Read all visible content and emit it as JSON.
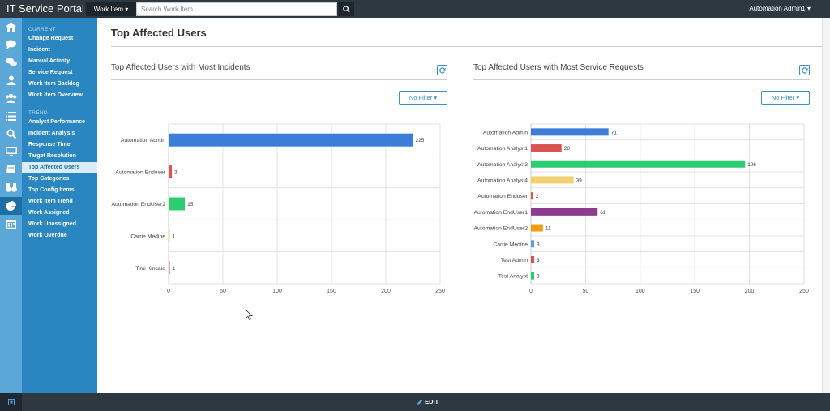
{
  "app": {
    "title": "IT Service Portal",
    "work_item_label": "Work Item",
    "search_placeholder": "Search Work Item",
    "user": "Automation Admin1"
  },
  "sidebar": {
    "current_heading": "CURRENT",
    "current_items": [
      "Change Request",
      "Incident",
      "Manual Activity",
      "Service Request",
      "Work Item Backlog",
      "Work Item Overview"
    ],
    "trend_heading": "TREND",
    "trend_items": [
      "Analyst Performance",
      "Incident Analysis",
      "Response Time",
      "Target Resolution",
      "Top Affected Users",
      "Top Categories",
      "Top Config Items",
      "Work Item Trend",
      "Work Assigned",
      "Work Unassigned",
      "Work Overdue"
    ],
    "active_item": "Top Affected Users"
  },
  "page": {
    "title": "Top Affected Users"
  },
  "panels": [
    {
      "title": "Top Affected Users with Most Incidents",
      "filter_label": "No Filter"
    },
    {
      "title": "Top Affected Users with Most Service Requests",
      "filter_label": "No Filter"
    }
  ],
  "bottom": {
    "edit_label": "EDIT"
  },
  "chart_data": [
    {
      "type": "bar",
      "orientation": "horizontal",
      "title": "Top Affected Users with Most Incidents",
      "categories": [
        "Automation Admin",
        "Automation Enduser",
        "Automation EndUser2",
        "Carrie Medine",
        "Timi Kincaid"
      ],
      "values": [
        225,
        3,
        15,
        1,
        1
      ],
      "colors": [
        "#3b7dd8",
        "#d9534f",
        "#2ecc71",
        "#f0d060",
        "#d9534f"
      ],
      "xlim": [
        0,
        250
      ],
      "xticks": [
        0,
        50,
        100,
        150,
        200,
        250
      ],
      "grid": true
    },
    {
      "type": "bar",
      "orientation": "horizontal",
      "title": "Top Affected Users with Most Service Requests",
      "categories": [
        "Automation Admin",
        "Automation Analyst1",
        "Automation Analyst3",
        "Automation Analyst4",
        "Automation Enduser",
        "Automation EndUser1",
        "Automation EndUser2",
        "Carrie Medine",
        "Test Admin",
        "Test Analyst"
      ],
      "values": [
        71,
        28,
        196,
        39,
        2,
        61,
        11,
        3,
        3,
        3
      ],
      "colors": [
        "#3b7dd8",
        "#d9534f",
        "#2ecc71",
        "#f0d070",
        "#d9534f",
        "#8e3a8e",
        "#f39c12",
        "#5aa0e0",
        "#d9534f",
        "#2ecc71"
      ],
      "xlim": [
        0,
        250
      ],
      "xticks": [
        0,
        50,
        100,
        150,
        200,
        250
      ],
      "grid": true
    }
  ]
}
